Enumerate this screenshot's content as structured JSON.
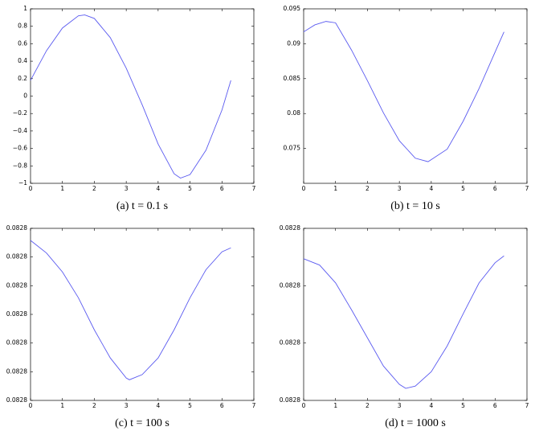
{
  "chart_data": [
    {
      "type": "line",
      "caption": "(a) t = 0.1 s",
      "color": "#5a5af0",
      "x": [
        0,
        0.5,
        1,
        1.5,
        1.7,
        2,
        2.5,
        3,
        3.5,
        4,
        4.5,
        4.7,
        5,
        5.5,
        6,
        6.28
      ],
      "values": [
        0.18,
        0.52,
        0.78,
        0.92,
        0.93,
        0.89,
        0.67,
        0.32,
        -0.1,
        -0.55,
        -0.89,
        -0.94,
        -0.9,
        -0.62,
        -0.16,
        0.18
      ],
      "xlim": [
        0,
        7
      ],
      "xticks": [
        0,
        1,
        2,
        3,
        4,
        5,
        6,
        7
      ],
      "ylim": [
        -1,
        1
      ],
      "yticks": [
        {
          "value": -1,
          "label": "−1"
        },
        {
          "value": -0.8,
          "label": "−0.8"
        },
        {
          "value": -0.6,
          "label": "−0.6"
        },
        {
          "value": -0.4,
          "label": "−0.4"
        },
        {
          "value": -0.2,
          "label": "−0.2"
        },
        0,
        0.2,
        0.4,
        0.6,
        0.8,
        1
      ]
    },
    {
      "type": "line",
      "caption": "(b) t = 10 s",
      "color": "#5a5af0",
      "x": [
        0,
        0.35,
        0.7,
        1,
        1.5,
        2,
        2.5,
        3,
        3.5,
        3.9,
        4.5,
        5,
        5.5,
        6,
        6.28
      ],
      "values": [
        0.0917,
        0.0927,
        0.0932,
        0.093,
        0.0891,
        0.0847,
        0.0801,
        0.0761,
        0.0736,
        0.0731,
        0.0749,
        0.0789,
        0.0836,
        0.0888,
        0.0917
      ],
      "xlim": [
        0,
        7
      ],
      "xticks": [
        0,
        1,
        2,
        3,
        4,
        5,
        6,
        7
      ],
      "ylim": [
        0.07,
        0.095
      ],
      "yticks": [
        0.075,
        0.08,
        0.085,
        0.09,
        0.095
      ]
    },
    {
      "type": "line",
      "caption": "(c) t = 100 s",
      "color": "#5a5af0",
      "x": [
        0,
        0.5,
        1,
        1.5,
        2,
        2.5,
        3,
        3.1,
        3.5,
        4,
        4.5,
        5,
        5.5,
        6,
        6.28
      ],
      "values": [
        0.0828179,
        0.0828157,
        0.0828124,
        0.0828079,
        0.0828023,
        0.0827974,
        0.0827939,
        0.0827936,
        0.0827945,
        0.0827974,
        0.0828023,
        0.0828079,
        0.0828128,
        0.0828159,
        0.0828166
      ],
      "xlim": [
        0,
        7
      ],
      "xticks": [
        0,
        1,
        2,
        3,
        4,
        5,
        6,
        7
      ],
      "ylim": [
        0.08279,
        0.08282
      ],
      "yticks": [
        {
          "value": 0.08279,
          "label": "0.0828"
        },
        {
          "value": 0.082795,
          "label": "0.0828"
        },
        0.0828,
        {
          "value": 0.082805,
          "label": "0.0828"
        },
        {
          "value": 0.08281,
          "label": "0.0828"
        },
        {
          "value": 0.082815,
          "label": "0.0828"
        },
        {
          "value": 0.08282,
          "label": "0.0828"
        }
      ]
    },
    {
      "type": "line",
      "caption": "(d) t = 1000 s",
      "color": "#5a5af0",
      "x": [
        0,
        0.5,
        1,
        1.5,
        2,
        2.5,
        3,
        3.2,
        3.5,
        4,
        4.5,
        5,
        5.5,
        6,
        6.28
      ],
      "values": [
        0.0828147,
        0.0828136,
        0.0828105,
        0.0828058,
        0.0828009,
        0.082796,
        0.0827928,
        0.0827921,
        0.0827925,
        0.082795,
        0.0827995,
        0.0828051,
        0.0828105,
        0.082814,
        0.0828152
      ],
      "xlim": [
        0,
        7
      ],
      "xticks": [
        0,
        1,
        2,
        3,
        4,
        5,
        6,
        7
      ],
      "ylim": [
        0.08279,
        0.08282
      ],
      "yticks": [
        {
          "value": 0.08279,
          "label": "0.0828"
        },
        0.0828,
        {
          "value": 0.08281,
          "label": "0.0828"
        },
        {
          "value": 0.08282,
          "label": "0.0828"
        }
      ]
    }
  ]
}
